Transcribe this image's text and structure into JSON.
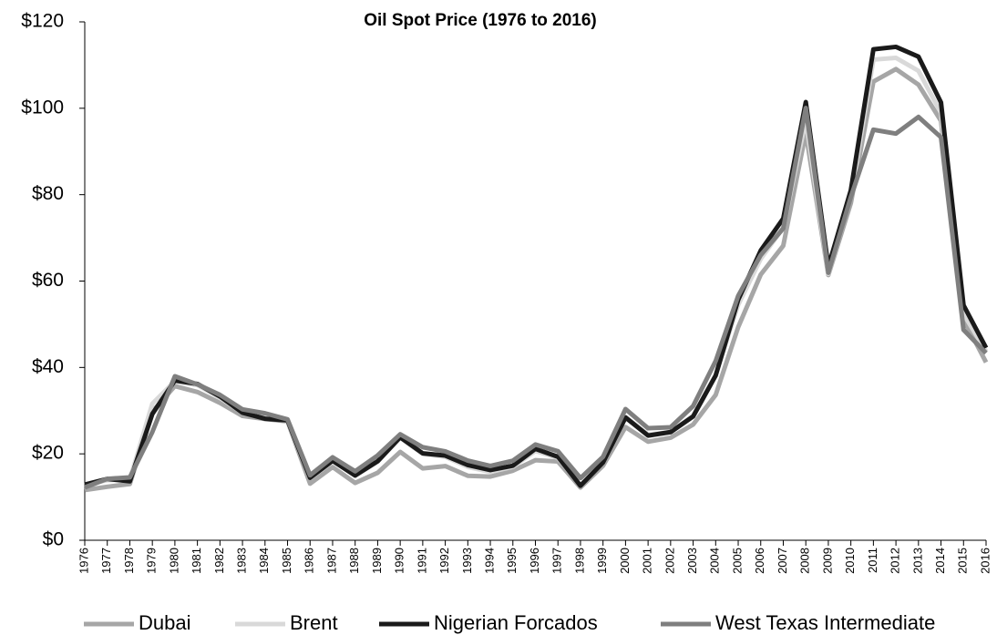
{
  "chart_data": {
    "type": "line",
    "title": "Oil Spot Price (1976 to 2016)",
    "categories": [
      "1976",
      "1977",
      "1978",
      "1979",
      "1980",
      "1981",
      "1982",
      "1983",
      "1984",
      "1985",
      "1986",
      "1987",
      "1988",
      "1989",
      "1990",
      "1991",
      "1992",
      "1993",
      "1994",
      "1995",
      "1996",
      "1997",
      "1998",
      "1999",
      "2000",
      "2001",
      "2002",
      "2003",
      "2004",
      "2005",
      "2006",
      "2007",
      "2008",
      "2009",
      "2010",
      "2011",
      "2012",
      "2013",
      "2014",
      "2015",
      "2016"
    ],
    "series": [
      {
        "name": "Dubai",
        "color": "#a6a6a6",
        "values": [
          11.63,
          12.38,
          13.03,
          29.75,
          35.69,
          34.32,
          31.8,
          28.78,
          28.06,
          27.53,
          13.1,
          16.95,
          13.27,
          15.62,
          20.45,
          16.63,
          17.17,
          14.93,
          14.74,
          16.1,
          18.52,
          18.23,
          12.21,
          17.25,
          26.2,
          22.81,
          23.74,
          26.78,
          33.64,
          49.35,
          61.5,
          68.19,
          94.34,
          61.39,
          78.06,
          106.18,
          109.08,
          105.47,
          97.07,
          51.2,
          41.19
        ]
      },
      {
        "name": "Brent",
        "color": "#d9d9d9",
        "values": [
          12.8,
          13.92,
          14.02,
          31.61,
          36.83,
          35.93,
          32.97,
          29.55,
          28.78,
          27.56,
          14.43,
          18.44,
          14.92,
          18.23,
          23.73,
          20.0,
          19.32,
          16.97,
          15.82,
          17.02,
          20.67,
          19.09,
          12.72,
          17.97,
          28.5,
          24.44,
          25.02,
          28.83,
          38.27,
          54.52,
          65.14,
          72.39,
          97.26,
          61.67,
          79.5,
          111.26,
          111.67,
          108.66,
          98.95,
          52.39,
          43.73
        ]
      },
      {
        "name": "Nigerian Forcados",
        "color": "#1a1a1a",
        "values": [
          12.87,
          14.21,
          13.65,
          29.25,
          36.98,
          36.18,
          33.29,
          29.54,
          28.14,
          27.75,
          14.46,
          18.39,
          15.0,
          18.3,
          23.85,
          20.11,
          19.61,
          17.41,
          16.25,
          17.26,
          21.16,
          19.33,
          12.62,
          18.0,
          28.42,
          24.23,
          25.04,
          28.66,
          38.13,
          55.69,
          67.07,
          74.48,
          101.43,
          63.35,
          81.05,
          113.65,
          114.21,
          111.95,
          101.35,
          54.41,
          44.54
        ]
      },
      {
        "name": "West Texas Intermediate",
        "color": "#7f7f7f",
        "values": [
          12.23,
          14.22,
          14.55,
          25.08,
          37.96,
          36.08,
          33.65,
          30.3,
          29.39,
          27.99,
          15.05,
          19.2,
          15.97,
          19.64,
          24.53,
          21.54,
          20.57,
          18.45,
          17.21,
          18.42,
          22.16,
          20.61,
          14.39,
          19.31,
          30.37,
          25.93,
          26.16,
          31.07,
          41.49,
          56.59,
          66.02,
          72.2,
          100.06,
          61.92,
          79.45,
          95.04,
          94.13,
          97.99,
          93.28,
          48.71,
          43.34
        ]
      }
    ],
    "ylim": [
      0,
      120
    ],
    "yticks": [
      {
        "value": 0,
        "label": "$0"
      },
      {
        "value": 20,
        "label": "$20"
      },
      {
        "value": 40,
        "label": "$40"
      },
      {
        "value": 60,
        "label": "$60"
      },
      {
        "value": 80,
        "label": "$80"
      },
      {
        "value": 100,
        "label": "$100"
      },
      {
        "value": 120,
        "label": "$120"
      }
    ],
    "legend": "bottom",
    "grid": false
  }
}
